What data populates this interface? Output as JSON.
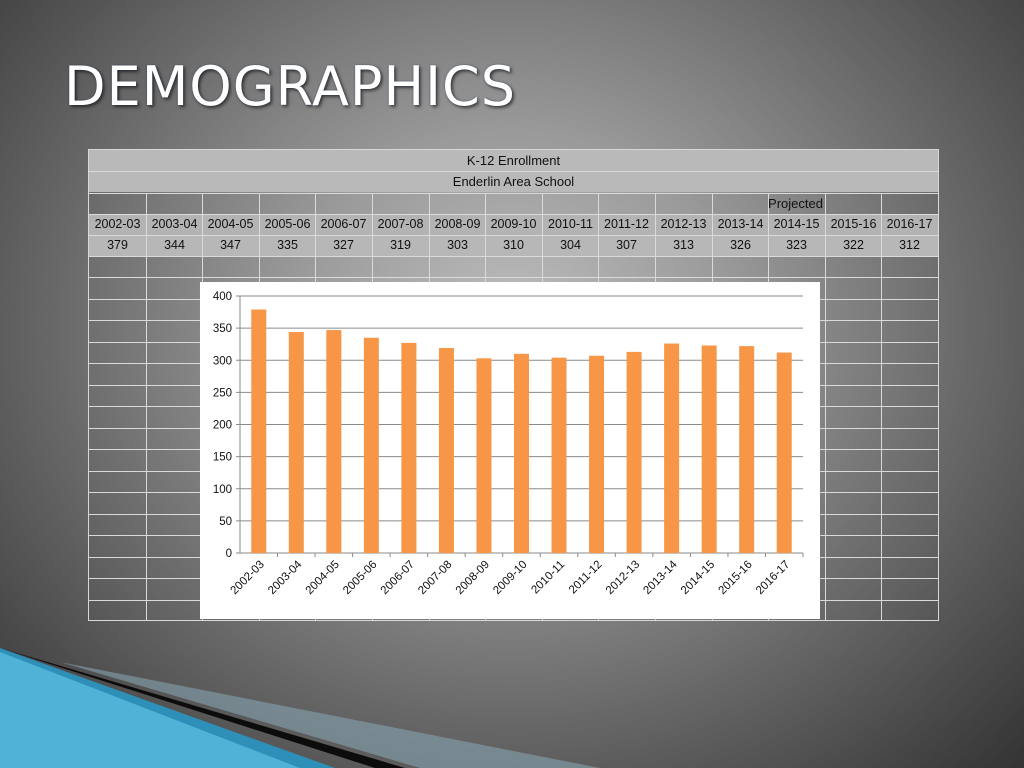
{
  "slide": {
    "title": "DEMOGRAPHICS"
  },
  "table": {
    "title": "K-12 Enrollment",
    "subtitle": "Enderlin Area School",
    "projected_label": "Projected",
    "years": [
      "2002-03",
      "2003-04",
      "2004-05",
      "2005-06",
      "2006-07",
      "2007-08",
      "2008-09",
      "2009-10",
      "2010-11",
      "2011-12",
      "2012-13",
      "2013-14",
      "2014-15",
      "2015-16",
      "2016-17"
    ],
    "values": [
      "379",
      "344",
      "347",
      "335",
      "327",
      "319",
      "303",
      "310",
      "304",
      "307",
      "313",
      "326",
      "323",
      "322",
      "312"
    ]
  },
  "chart_data": {
    "type": "bar",
    "categories": [
      "2002-03",
      "2003-04",
      "2004-05",
      "2005-06",
      "2006-07",
      "2007-08",
      "2008-09",
      "2009-10",
      "2010-11",
      "2011-12",
      "2012-13",
      "2013-14",
      "2014-15",
      "2015-16",
      "2016-17"
    ],
    "values": [
      379,
      344,
      347,
      335,
      327,
      319,
      303,
      310,
      304,
      307,
      313,
      326,
      323,
      322,
      312
    ],
    "ylim": [
      0,
      400
    ],
    "yticks": [
      0,
      50,
      100,
      150,
      200,
      250,
      300,
      350,
      400
    ],
    "grid": true,
    "bar_color": "#F79646"
  },
  "colors": {
    "ribbon_blue": "#3a9fc4",
    "ribbon_dark": "#111111"
  }
}
